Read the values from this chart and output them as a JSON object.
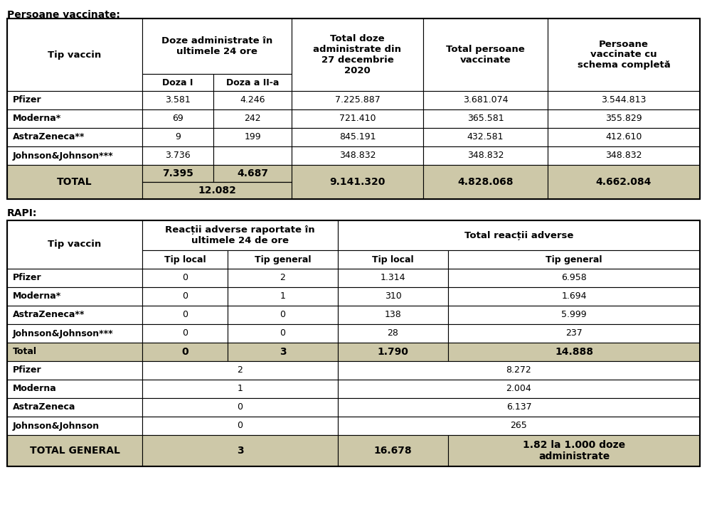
{
  "title1": "Persoane vaccinate:",
  "title2": "RAPI:",
  "bg_color": "#ffffff",
  "total_bg": "#cdc8a8",
  "border_color": "#000000",
  "table1": {
    "rows": [
      [
        "Pfizer",
        "3.581",
        "4.246",
        "7.225.887",
        "3.681.074",
        "3.544.813"
      ],
      [
        "Moderna*",
        "69",
        "242",
        "721.410",
        "365.581",
        "355.829"
      ],
      [
        "AstraZeneca**",
        "9",
        "199",
        "845.191",
        "432.581",
        "412.610"
      ],
      [
        "Johnson&Johnson***",
        "3.736",
        "",
        "348.832",
        "348.832",
        "348.832"
      ]
    ],
    "total_row": [
      "TOTAL",
      "7.395",
      "4.687",
      "9.141.320",
      "4.828.068",
      "4.662.084"
    ],
    "total_combined": "12.082"
  },
  "table2": {
    "rows": [
      [
        "Pfizer",
        "0",
        "2",
        "1.314",
        "6.958"
      ],
      [
        "Moderna*",
        "0",
        "1",
        "310",
        "1.694"
      ],
      [
        "AstraZeneca**",
        "0",
        "0",
        "138",
        "5.999"
      ],
      [
        "Johnson&Johnson***",
        "0",
        "0",
        "28",
        "237"
      ]
    ],
    "total_row": [
      "Total",
      "0",
      "3",
      "1.790",
      "14.888"
    ],
    "rows2": [
      [
        "Pfizer",
        "2",
        "8.272"
      ],
      [
        "Moderna",
        "1",
        "2.004"
      ],
      [
        "AstraZeneca",
        "0",
        "6.137"
      ],
      [
        "Johnson&Johnson",
        "0",
        "265"
      ]
    ],
    "total_general": [
      "TOTAL GENERAL",
      "3",
      "16.678",
      "1.82 la 1.000 doze\nadministrate"
    ]
  }
}
